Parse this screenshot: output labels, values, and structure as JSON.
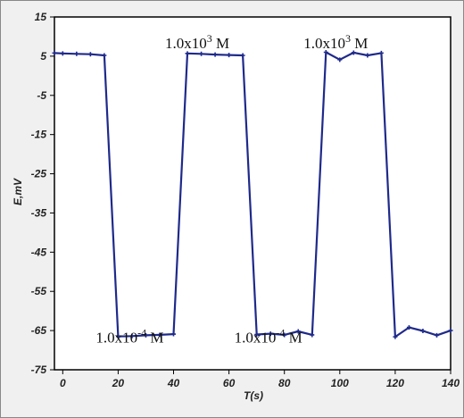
{
  "chart_data": {
    "type": "line",
    "xlabel": "T(s)",
    "ylabel": "E,mV",
    "xlim": [
      -3,
      140
    ],
    "ylim": [
      -75,
      15
    ],
    "xticks": [
      0,
      20,
      40,
      60,
      80,
      100,
      120,
      140
    ],
    "yticks": [
      15,
      5,
      -5,
      -15,
      -25,
      -35,
      -45,
      -55,
      -65,
      -75
    ],
    "grid": false,
    "line_color": "#1f2a8a",
    "series": [
      {
        "x": [
          -3,
          0,
          5,
          10,
          15,
          20,
          25,
          30,
          35,
          40,
          45,
          50,
          55,
          60,
          65,
          70,
          75,
          80,
          85,
          90,
          95,
          100,
          105,
          110,
          115,
          120,
          125,
          130,
          135,
          140
        ],
        "y": [
          5.8,
          5.7,
          5.6,
          5.5,
          5.2,
          -66.5,
          -66.4,
          -66.2,
          -66.1,
          -65.9,
          5.7,
          5.6,
          5.4,
          5.3,
          5.2,
          -66.0,
          -65.8,
          -66.1,
          -65.2,
          -66.1,
          6.0,
          4.1,
          5.9,
          5.2,
          5.8,
          -66.6,
          -64.2,
          -65.1,
          -66.2,
          -65.0
        ]
      }
    ],
    "annotations": [
      {
        "base": "1.0x10",
        "exp": "3",
        "unit": " M",
        "at": [
          45,
          7
        ]
      },
      {
        "base": "1.0x10",
        "exp": "3",
        "unit": " M",
        "at": [
          95,
          7
        ]
      },
      {
        "base": "1.0x10",
        "exp": "-4",
        "unit": " M",
        "at": [
          20,
          -68
        ]
      },
      {
        "base": "1.0x10",
        "exp": "-4",
        "unit": " M",
        "at": [
          70,
          -68
        ]
      }
    ]
  }
}
